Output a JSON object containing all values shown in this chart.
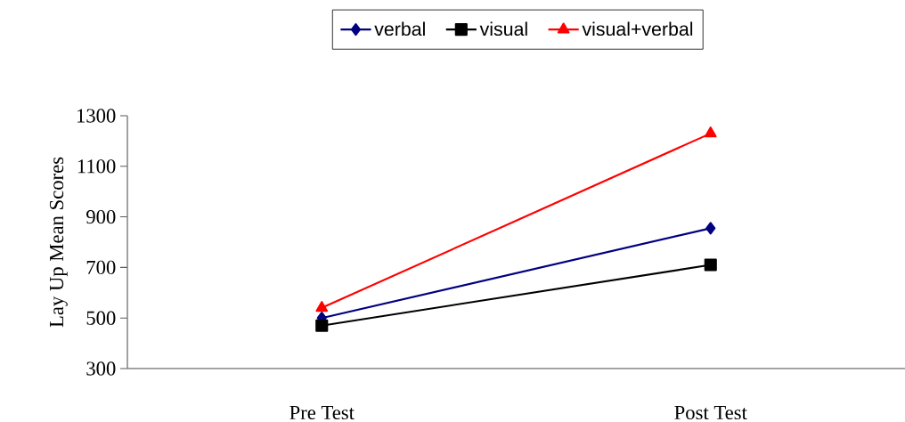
{
  "chart_data": {
    "type": "line",
    "ylabel": "Lay Up Mean Scores",
    "categories": [
      "Pre Test",
      "Post Test"
    ],
    "ylim": [
      300,
      1300
    ],
    "yticks": [
      300,
      500,
      700,
      900,
      1100,
      1300
    ],
    "legend": "top",
    "grid": false,
    "series": [
      {
        "name": "verbal",
        "color": "#000080",
        "marker": "diamond",
        "values": [
          500,
          855
        ]
      },
      {
        "name": "visual",
        "color": "#000000",
        "marker": "square",
        "values": [
          470,
          710
        ]
      },
      {
        "name": "visual+verbal",
        "color": "#ff0000",
        "marker": "triangle",
        "values": [
          540,
          1230
        ]
      }
    ]
  }
}
